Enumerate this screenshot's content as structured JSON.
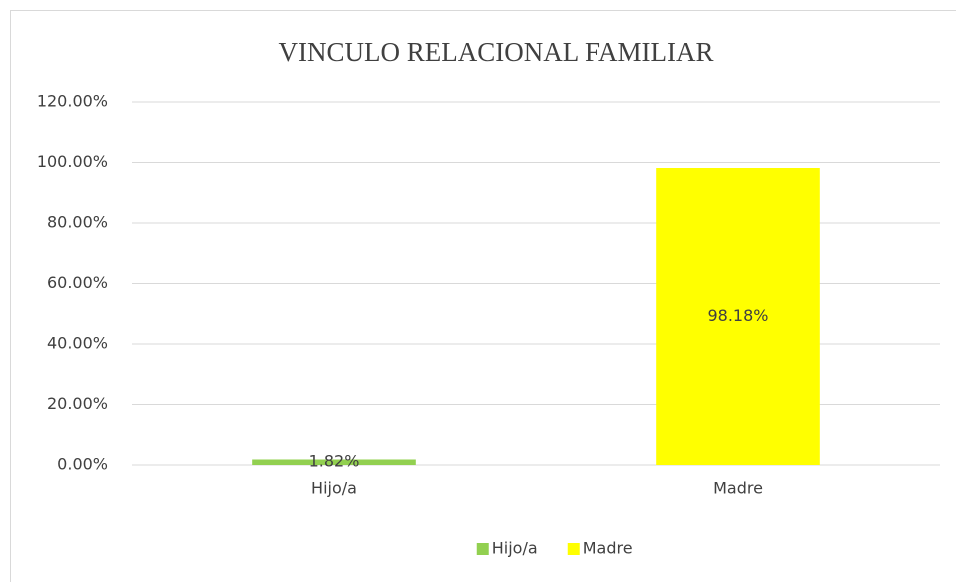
{
  "chart_data": {
    "type": "bar",
    "title": "VINCULO RELACIONAL FAMILIAR",
    "categories": [
      "Hijo/a",
      "Madre"
    ],
    "series": [
      {
        "name": "Hijo/a",
        "color": "#92d050",
        "values": [
          1.82,
          null
        ],
        "value_labels": [
          "1.82%",
          null
        ]
      },
      {
        "name": "Madre",
        "color": "#ffff00",
        "values": [
          null,
          98.18
        ],
        "value_labels": [
          null,
          "98.18%"
        ]
      }
    ],
    "ylim": [
      0,
      120
    ],
    "yticks": [
      {
        "value": 0,
        "label": "0.00%"
      },
      {
        "value": 20,
        "label": "20.00%"
      },
      {
        "value": 40,
        "label": "40.00%"
      },
      {
        "value": 60,
        "label": "60.00%"
      },
      {
        "value": 80,
        "label": "80.00%"
      },
      {
        "value": 100,
        "label": "100.00%"
      },
      {
        "value": 120,
        "label": "120.00%"
      }
    ],
    "grid": true,
    "legend": "bottom"
  }
}
